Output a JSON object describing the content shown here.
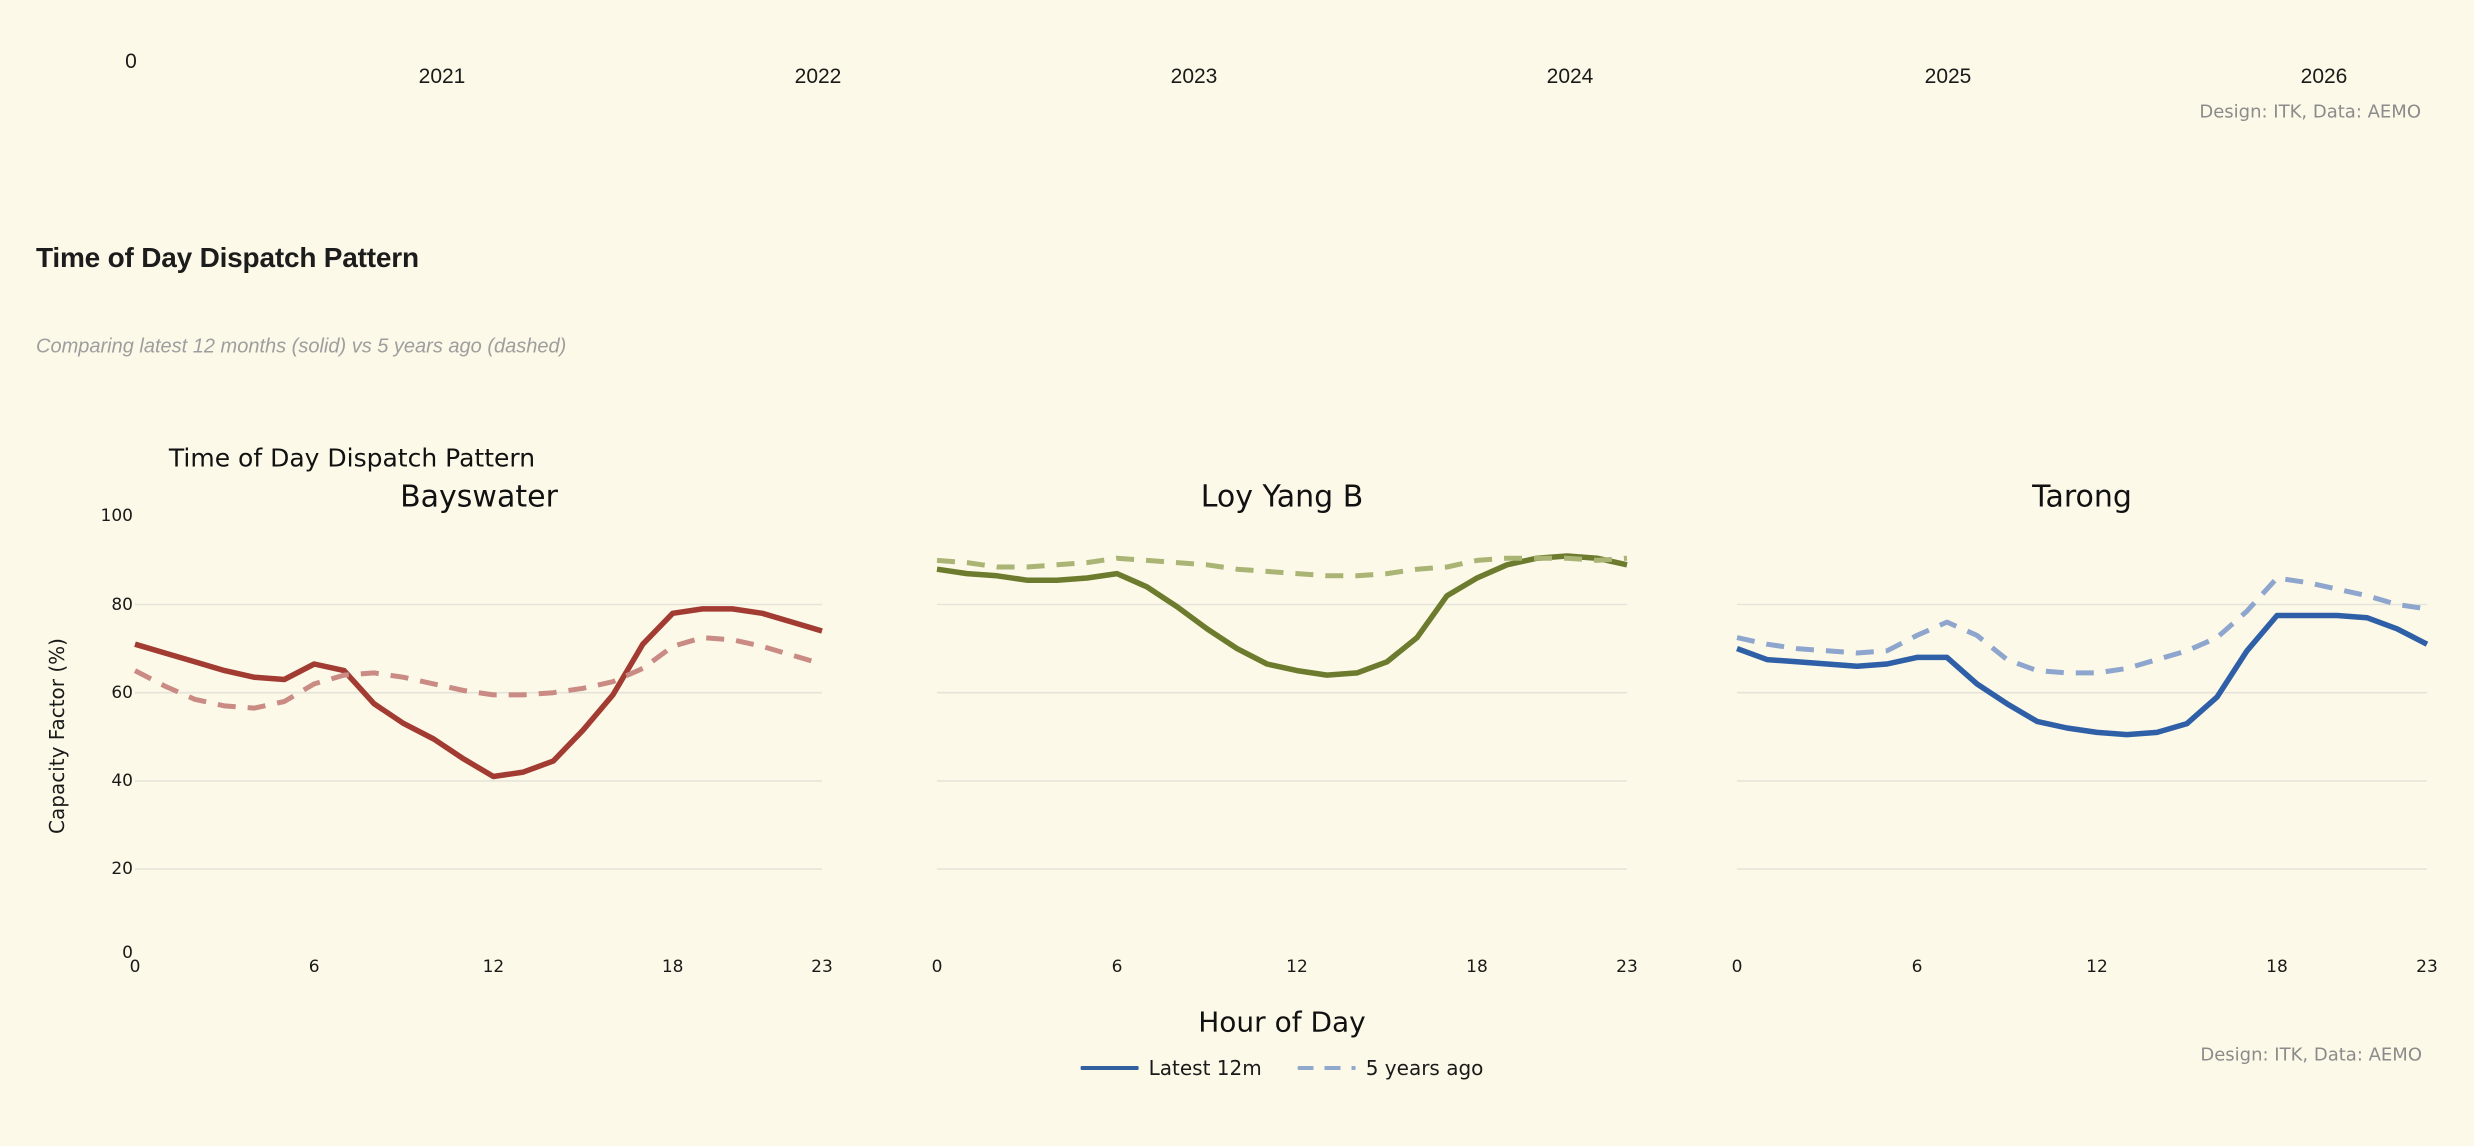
{
  "top_axis": {
    "zero_label": "0",
    "years": [
      "2021",
      "2022",
      "2023",
      "2024",
      "2025",
      "2026"
    ],
    "credit": "Design: ITK, Data: AEMO"
  },
  "header": {
    "title": "Time of Day Dispatch Pattern",
    "subtitle": "Comparing latest 12 months (solid) vs 5 years ago (dashed)"
  },
  "figure": {
    "suptitle": "Time of Day Dispatch Pattern",
    "ylabel": "Capacity Factor (%)",
    "xlabel": "Hour of Day",
    "y_ticks": [
      100,
      80,
      60,
      40,
      20,
      0
    ],
    "x_ticks": [
      0,
      6,
      12,
      18,
      23
    ],
    "legend": [
      {
        "label": "Latest 12m",
        "style": "solid",
        "color": "#32609F"
      },
      {
        "label": "5 years ago",
        "style": "dashed",
        "color": "#92A9CE"
      }
    ],
    "credit": "Design: ITK, Data: AEMO",
    "background": "#FCF9E8",
    "gridline_color": "#E6E4DA"
  },
  "chart_data": [
    {
      "type": "line",
      "title": "Bayswater",
      "x": [
        0,
        1,
        2,
        3,
        4,
        5,
        6,
        7,
        8,
        9,
        10,
        11,
        12,
        13,
        14,
        15,
        16,
        17,
        18,
        19,
        20,
        21,
        22,
        23
      ],
      "xlabel": "Hour of Day",
      "ylabel": "Capacity Factor (%)",
      "ylim": [
        0,
        100
      ],
      "xlim": [
        0,
        23
      ],
      "gridlines": [
        80,
        60,
        40,
        20
      ],
      "series": [
        {
          "name": "Latest 12m",
          "style": "solid",
          "color": "#A23B32",
          "values": [
            71,
            69,
            67,
            65,
            63.5,
            63,
            66.5,
            65,
            57.5,
            53,
            49.5,
            45,
            41,
            42,
            44.5,
            51.5,
            59.5,
            71,
            78,
            79,
            79,
            78,
            76,
            74
          ]
        },
        {
          "name": "5 years ago",
          "style": "dashed",
          "color": "#C98B84",
          "values": [
            65,
            61.5,
            58.5,
            57,
            56.5,
            58,
            62,
            64,
            64.5,
            63.5,
            62,
            60.5,
            59.5,
            59.5,
            60,
            61,
            62.5,
            65.5,
            70.5,
            72.5,
            72,
            70.5,
            68.5,
            66.5
          ]
        }
      ]
    },
    {
      "type": "line",
      "title": "Loy Yang B",
      "x": [
        0,
        1,
        2,
        3,
        4,
        5,
        6,
        7,
        8,
        9,
        10,
        11,
        12,
        13,
        14,
        15,
        16,
        17,
        18,
        19,
        20,
        21,
        22,
        23
      ],
      "xlabel": "Hour of Day",
      "ylabel": "Capacity Factor (%)",
      "ylim": [
        0,
        100
      ],
      "xlim": [
        0,
        23
      ],
      "gridlines": [
        80,
        60,
        40,
        20
      ],
      "series": [
        {
          "name": "Latest 12m",
          "style": "solid",
          "color": "#6C7B2D",
          "values": [
            88,
            87,
            86.5,
            85.5,
            85.5,
            86,
            87,
            84,
            79.5,
            74.5,
            70,
            66.5,
            65,
            64,
            64.5,
            67,
            72.5,
            82,
            86,
            89,
            90.5,
            91,
            90.5,
            89
          ]
        },
        {
          "name": "5 years ago",
          "style": "dashed",
          "color": "#A9B475",
          "values": [
            90,
            89.5,
            88.5,
            88.5,
            89,
            89.5,
            90.5,
            90,
            89.5,
            89,
            88,
            87.5,
            87,
            86.5,
            86.5,
            87,
            88,
            88.5,
            90,
            90.5,
            90.5,
            90.5,
            90,
            90.5
          ]
        }
      ]
    },
    {
      "type": "line",
      "title": "Tarong",
      "x": [
        0,
        1,
        2,
        3,
        4,
        5,
        6,
        7,
        8,
        9,
        10,
        11,
        12,
        13,
        14,
        15,
        16,
        17,
        18,
        19,
        20,
        21,
        22,
        23
      ],
      "xlabel": "Hour of Day",
      "ylabel": "Capacity Factor (%)",
      "ylim": [
        0,
        100
      ],
      "xlim": [
        0,
        23
      ],
      "gridlines": [
        80,
        60,
        40,
        20
      ],
      "series": [
        {
          "name": "Latest 12m",
          "style": "solid",
          "color": "#2E5FA7",
          "values": [
            70,
            67.5,
            67,
            66.5,
            66,
            66.5,
            68,
            68,
            62,
            57.5,
            53.5,
            52,
            51,
            50.5,
            51,
            53,
            59,
            69.5,
            77.5,
            77.5,
            77.5,
            77,
            74.5,
            71
          ]
        },
        {
          "name": "5 years ago",
          "style": "dashed",
          "color": "#8EA5CE",
          "values": [
            72.5,
            71,
            70,
            69.5,
            69,
            69.5,
            73,
            76,
            73,
            67.5,
            65,
            64.5,
            64.5,
            65.5,
            67.5,
            69.5,
            72.5,
            78.5,
            86,
            85,
            83.5,
            82,
            80,
            79
          ]
        }
      ]
    }
  ]
}
